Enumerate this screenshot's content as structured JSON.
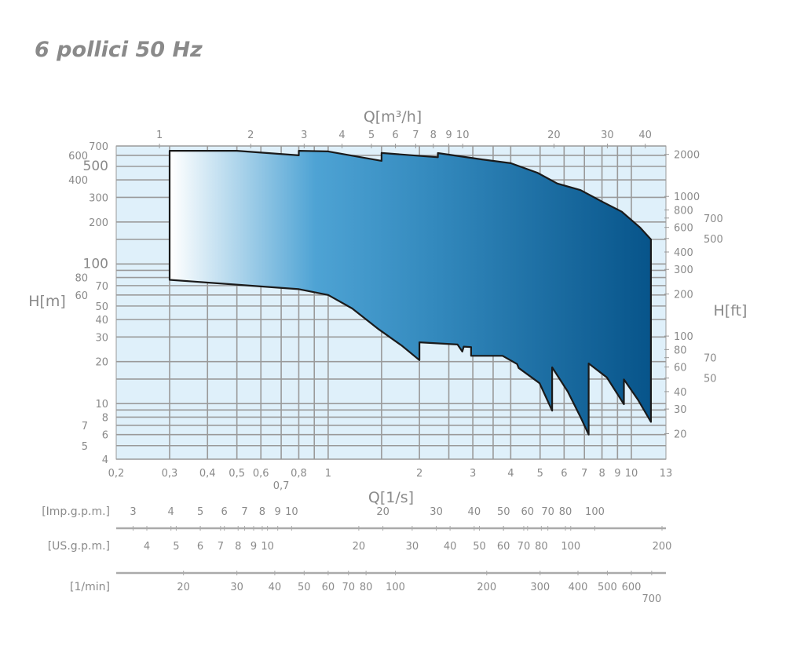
{
  "title": "6 pollici 50 Hz",
  "chart_data": {
    "type": "area",
    "title": "6 pollici 50 Hz",
    "xlabel": "Q[1/s]",
    "x2label": "Q[m³/h]",
    "ylabel": "H[m]",
    "y2label": "H[ft]",
    "xscale": "log",
    "yscale": "log",
    "xlim": [
      0.2,
      13
    ],
    "ylim": [
      4,
      700
    ],
    "grid": true,
    "colors": {
      "plot_bg": "#dff0fa",
      "grid": "#9a9a9a",
      "fill_start": "#ffffff",
      "fill_mid": "#4ea3d4",
      "fill_end": "#07548a",
      "outline": "#1a1a1a",
      "text": "#8a8a8a"
    },
    "x_ticks": [
      {
        "v": 0.2,
        "label": "0,2"
      },
      {
        "v": 0.3,
        "label": "0,3"
      },
      {
        "v": 0.4,
        "label": "0,4"
      },
      {
        "v": 0.5,
        "label": "0,5"
      },
      {
        "v": 0.6,
        "label": "0,6"
      },
      {
        "v": 0.7,
        "label": "0,7"
      },
      {
        "v": 0.8,
        "label": "0,8"
      },
      {
        "v": 1,
        "label": "1"
      },
      {
        "v": 2,
        "label": "2"
      },
      {
        "v": 3,
        "label": "3"
      },
      {
        "v": 4,
        "label": "4"
      },
      {
        "v": 5,
        "label": "5"
      },
      {
        "v": 6,
        "label": "6"
      },
      {
        "v": 7,
        "label": "7"
      },
      {
        "v": 8,
        "label": "8"
      },
      {
        "v": 9,
        "label": "9"
      },
      {
        "v": 10,
        "label": "10"
      },
      {
        "v": 13,
        "label": "13"
      }
    ],
    "x_grid": [
      0.3,
      0.4,
      0.5,
      0.6,
      0.7,
      0.8,
      0.9,
      1,
      1.5,
      2,
      2.5,
      3,
      3.5,
      4,
      5,
      6,
      7,
      8,
      9,
      10
    ],
    "y_ticks": [
      700,
      600,
      500,
      400,
      300,
      200,
      100,
      80,
      70,
      60,
      50,
      40,
      30,
      20,
      10,
      8,
      7,
      6,
      5,
      4
    ],
    "y_grid": [
      4,
      5,
      6,
      7,
      8,
      9,
      10,
      15,
      20,
      30,
      40,
      50,
      60,
      70,
      80,
      90,
      100,
      150,
      200,
      300,
      400,
      500,
      600,
      700
    ],
    "x2_ticks_m3h": [
      1,
      2,
      3,
      4,
      5,
      6,
      7,
      8,
      9,
      10,
      20,
      30,
      40
    ],
    "y2_ticks_ft": [
      2000,
      1000,
      800,
      700,
      600,
      500,
      400,
      300,
      200,
      100,
      80,
      70,
      60,
      50,
      40,
      30,
      20
    ],
    "upper_curve": [
      [
        0.3,
        647
      ],
      [
        0.5,
        647
      ],
      [
        0.8,
        600
      ],
      [
        0.8,
        647
      ],
      [
        1.0,
        640
      ],
      [
        1.5,
        548
      ],
      [
        1.5,
        624
      ],
      [
        2.3,
        582
      ],
      [
        2.3,
        623
      ],
      [
        3.2,
        562
      ],
      [
        4.0,
        527
      ],
      [
        4.9,
        450
      ],
      [
        5.7,
        377
      ],
      [
        6.8,
        338
      ],
      [
        8.0,
        280
      ],
      [
        9.3,
        237
      ],
      [
        10.7,
        182
      ],
      [
        11.6,
        150
      ]
    ],
    "lower_curve": [
      [
        0.3,
        77
      ],
      [
        0.8,
        66
      ],
      [
        1.0,
        60
      ],
      [
        1.2,
        48
      ],
      [
        1.47,
        34
      ],
      [
        1.75,
        26
      ],
      [
        2.0,
        20.5
      ],
      [
        2.0,
        27.5
      ],
      [
        2.67,
        26.5
      ],
      [
        2.77,
        23.6
      ],
      [
        2.8,
        25.6
      ],
      [
        2.96,
        25.4
      ],
      [
        2.96,
        22
      ],
      [
        3.76,
        22
      ],
      [
        4.2,
        19.2
      ],
      [
        4.25,
        18
      ],
      [
        4.98,
        14
      ],
      [
        5.48,
        8.9
      ],
      [
        5.48,
        18.2
      ],
      [
        6.17,
        12.2
      ],
      [
        6.8,
        8
      ],
      [
        7.23,
        6.0
      ],
      [
        7.23,
        19.4
      ],
      [
        8.3,
        15.4
      ],
      [
        9.45,
        9.9
      ],
      [
        9.45,
        14.9
      ],
      [
        10.5,
        10.7
      ],
      [
        11.6,
        7.4
      ]
    ],
    "secondary_scales": [
      {
        "label": "[Imp.g.p.m.]",
        "factor": 13.198,
        "ticks": [
          3,
          4,
          5,
          6,
          7,
          8,
          9,
          10,
          20,
          30,
          40,
          50,
          60,
          70,
          80,
          100
        ]
      },
      {
        "label": "[US.g.p.m.]",
        "factor": 15.85,
        "ticks": [
          4,
          5,
          6,
          7,
          8,
          9,
          10,
          20,
          30,
          40,
          50,
          60,
          70,
          80,
          100,
          200
        ]
      },
      {
        "label": "[1/min]",
        "factor": 60,
        "ticks": [
          20,
          30,
          40,
          50,
          60,
          70,
          80,
          100,
          200,
          300,
          400,
          500,
          600,
          700
        ]
      }
    ]
  }
}
